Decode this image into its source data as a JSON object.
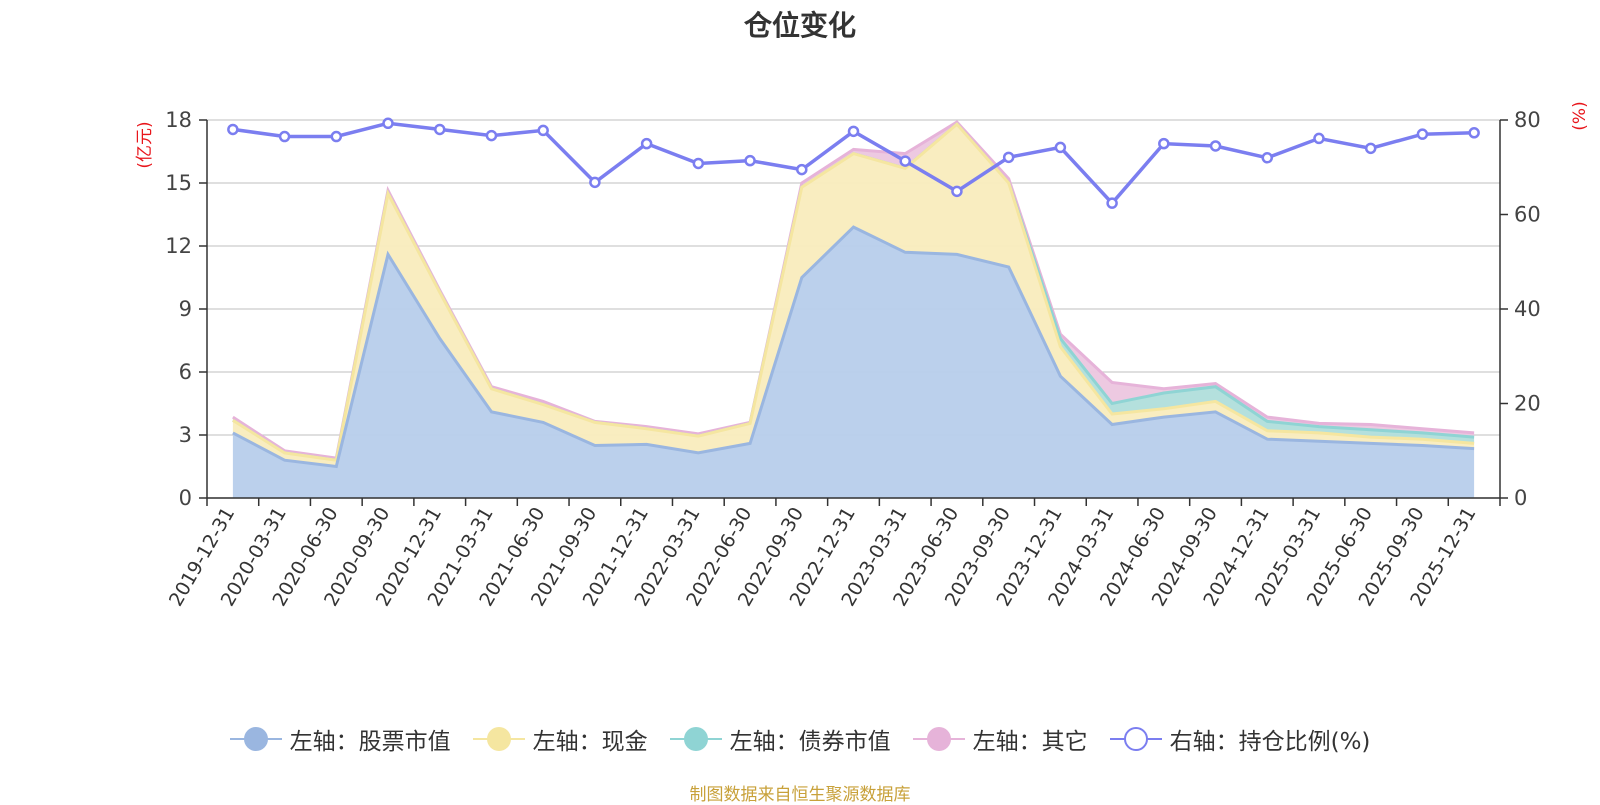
{
  "chart_data": {
    "type": "area",
    "title": "仓位变化",
    "source": "制图数据来自恒生聚源数据库",
    "left_axis_label": "(亿元)",
    "right_axis_label": "(%)",
    "left_ylim": [
      0,
      18
    ],
    "left_ticks": [
      "0",
      "3",
      "6",
      "9",
      "12",
      "15",
      "18"
    ],
    "right_ylim": [
      0,
      80
    ],
    "right_ticks": [
      "0",
      "20",
      "40",
      "60",
      "80"
    ],
    "categories": [
      "2019-12-31",
      "2020-03-31",
      "2020-06-30",
      "2020-09-30",
      "2020-12-31",
      "2021-03-31",
      "2021-06-30",
      "2021-09-30",
      "2021-12-31",
      "2022-03-31",
      "2022-06-30",
      "2022-09-30",
      "2022-12-31",
      "2023-03-31",
      "2023-06-30",
      "2023-09-30",
      "2023-12-31",
      "2024-03-31",
      "2024-06-30",
      "2024-09-30",
      "2024-12-31",
      "2025-03-31",
      "2025-06-30",
      "2025-09-30",
      "2025-12-31"
    ],
    "series": [
      {
        "name": "左轴：股票市值",
        "axis": "left",
        "stack": true,
        "color": "#9ab6e0",
        "fill": "#b7cdeb",
        "values": [
          3.1,
          1.8,
          1.5,
          11.6,
          7.6,
          4.1,
          3.6,
          2.5,
          2.55,
          2.15,
          2.6,
          10.5,
          12.9,
          11.7,
          11.6,
          11.0,
          5.8,
          3.5,
          3.85,
          4.1,
          2.8,
          2.7,
          2.6,
          2.5,
          2.35
        ]
      },
      {
        "name": "左轴：现金",
        "axis": "left",
        "stack": true,
        "color": "#f5e6a0",
        "fill": "#f9ecbd",
        "values": [
          0.6,
          0.35,
          0.3,
          2.9,
          2.2,
          1.1,
          0.85,
          1.1,
          0.75,
          0.8,
          0.95,
          4.3,
          3.5,
          4.0,
          6.2,
          4.0,
          1.4,
          0.5,
          0.4,
          0.5,
          0.4,
          0.4,
          0.3,
          0.3,
          0.25
        ]
      },
      {
        "name": "左轴：债券市值",
        "axis": "left",
        "stack": true,
        "color": "#8fd4d4",
        "fill": "#b0dedb",
        "values": [
          0,
          0,
          0,
          0,
          0,
          0,
          0,
          0,
          0,
          0,
          0,
          0,
          0,
          0,
          0,
          0,
          0.4,
          0.5,
          0.75,
          0.7,
          0.45,
          0.3,
          0.35,
          0.3,
          0.3
        ]
      },
      {
        "name": "左轴：其它",
        "axis": "left",
        "stack": true,
        "color": "#e6b3d9",
        "fill": "#ecc6df",
        "values": [
          0.15,
          0.1,
          0.1,
          0.15,
          0.1,
          0.1,
          0.15,
          0.05,
          0.1,
          0.1,
          0.05,
          0.2,
          0.2,
          0.7,
          0.1,
          0.2,
          0.2,
          1.0,
          0.2,
          0.15,
          0.2,
          0.15,
          0.25,
          0.2,
          0.2
        ]
      },
      {
        "name": "右轴：持仓比例(%)",
        "axis": "right",
        "stack": false,
        "color": "#7b7ef0",
        "fill": "#ffffff",
        "values": [
          78.0,
          76.5,
          76.5,
          79.3,
          78.0,
          76.7,
          77.8,
          66.8,
          75.0,
          70.8,
          71.4,
          69.5,
          77.6,
          71.3,
          64.9,
          72.1,
          74.2,
          62.4,
          75.0,
          74.5,
          72.0,
          76.1,
          74.0,
          77.0,
          77.3
        ]
      }
    ]
  }
}
